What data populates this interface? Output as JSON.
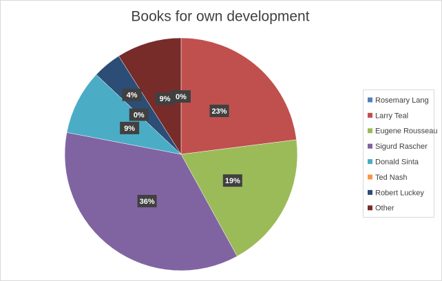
{
  "chart_data": {
    "type": "pie",
    "title": "Books for own development",
    "categories": [
      "Rosemary Lang",
      "Larry Teal",
      "Eugene Rousseau",
      "Sigurd Rascher",
      "Donald Sinta",
      "Ted Nash",
      "Robert Luckey",
      "Other"
    ],
    "values": [
      0,
      23,
      19,
      36,
      9,
      0,
      4,
      9
    ],
    "value_labels": [
      "0%",
      "23%",
      "19%",
      "36%",
      "9%",
      "0%",
      "4%",
      "9%"
    ],
    "colors": [
      "#4f81bd",
      "#c0504d",
      "#9bbb59",
      "#8064a2",
      "#4bacc6",
      "#f79646",
      "#2c4d75",
      "#772c2a"
    ],
    "legend": "right"
  }
}
